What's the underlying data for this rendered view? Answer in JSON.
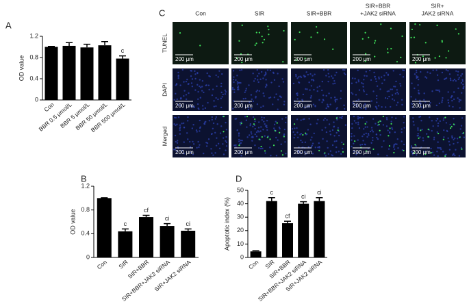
{
  "chart_data": [
    {
      "type": "bar",
      "panel_label": "A",
      "y_label": "OD value",
      "color": "#000000",
      "categories": [
        "Con",
        "BBR 0.5 μmol/L",
        "BBR 5 μmol/L",
        "BBR 50 μmol/L",
        "BBR 500 μmol/L"
      ],
      "values": [
        1.0,
        1.02,
        0.99,
        1.03,
        0.78
      ],
      "errors": [
        0.01,
        0.06,
        0.06,
        0.07,
        0.05
      ],
      "annotations": [
        null,
        null,
        null,
        null,
        "c"
      ],
      "ylim": [
        0,
        1.2
      ],
      "yticks": [
        0,
        0.4,
        0.8,
        1.2
      ]
    },
    {
      "type": "bar",
      "panel_label": "B",
      "y_label": "OD value",
      "color": "#000000",
      "categories": [
        "Con",
        "SIR",
        "SIR+BBR",
        "SIR+BBR+JAK2 siRNA",
        "SIR+JAK2 siRNA"
      ],
      "values": [
        1.0,
        0.44,
        0.68,
        0.53,
        0.45
      ],
      "errors": [
        0.005,
        0.04,
        0.03,
        0.04,
        0.03
      ],
      "annotations": [
        null,
        "c",
        "cf",
        "ci",
        "ci"
      ],
      "ylim": [
        0,
        1.2
      ],
      "yticks": [
        0,
        0.4,
        0.8,
        1.2
      ]
    },
    {
      "type": "bar",
      "panel_label": "D",
      "y_label": "Apoptotic index (%)",
      "color": "#000000",
      "categories": [
        "Con",
        "SIR",
        "SIR+BBR",
        "SIR+BBR+JAK2 siRNA",
        "SIR+JAK2 siRNA"
      ],
      "values": [
        4.5,
        42,
        25.5,
        40,
        42
      ],
      "errors": [
        0.5,
        2.5,
        1.5,
        1.5,
        2.5
      ],
      "annotations": [
        null,
        "c",
        "cf",
        "ci",
        "ci"
      ],
      "ylim": [
        0,
        50
      ],
      "yticks": [
        0,
        10,
        20,
        30,
        40,
        50
      ]
    }
  ],
  "image_panel": {
    "panel_label": "C",
    "columns": [
      [
        "Con"
      ],
      [
        "SIR"
      ],
      [
        "SIR+BBR"
      ],
      [
        "SIR+BBR",
        "+JAK2 siRNA"
      ],
      [
        "SIR+",
        "JAK2 siRNA"
      ]
    ],
    "rows": [
      "TUNEL",
      "DAPI",
      "Merged"
    ],
    "scale_bar": "200 μm"
  }
}
